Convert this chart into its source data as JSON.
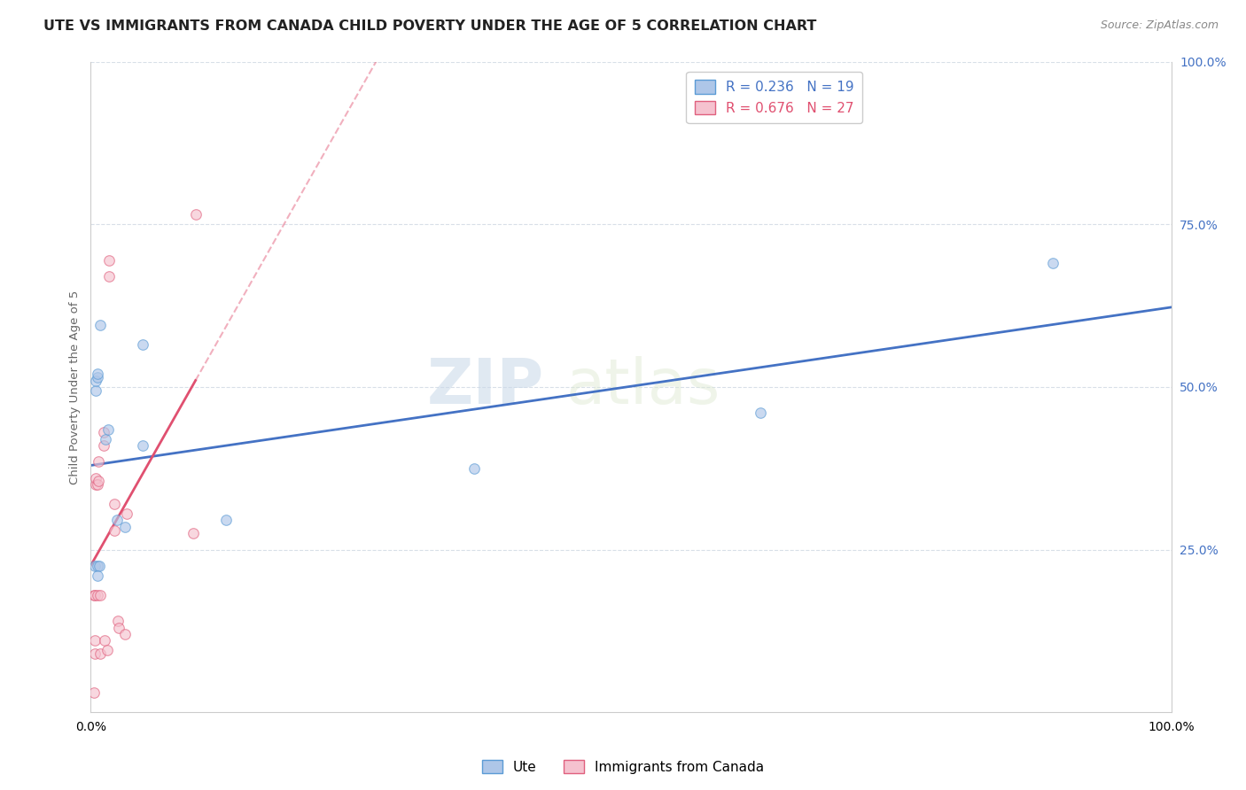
{
  "title": "UTE VS IMMIGRANTS FROM CANADA CHILD POVERTY UNDER THE AGE OF 5 CORRELATION CHART",
  "source": "Source: ZipAtlas.com",
  "ylabel": "Child Poverty Under the Age of 5",
  "watermark": "ZIPatlas",
  "xlim": [
    0,
    1
  ],
  "ylim": [
    0,
    1
  ],
  "xticks": [
    0,
    0.1,
    0.2,
    0.3,
    0.4,
    0.5,
    0.6,
    0.7,
    0.8,
    0.9,
    1.0
  ],
  "xticklabels": [
    "0.0%",
    "",
    "",
    "",
    "",
    "",
    "",
    "",
    "",
    "",
    "100.0%"
  ],
  "ytick_positions": [
    0.0,
    0.25,
    0.5,
    0.75,
    1.0
  ],
  "ytick_labels": [
    "",
    "25.0%",
    "50.0%",
    "75.0%",
    "100.0%"
  ],
  "ute_fill_color": "#aec6e8",
  "ute_edge_color": "#5b9bd5",
  "canada_fill_color": "#f5c2cf",
  "canada_edge_color": "#e0607e",
  "ute_line_color": "#4472c4",
  "canada_line_color": "#e05070",
  "legend_R_ute": "R = 0.236",
  "legend_N_ute": "N = 19",
  "legend_R_canada": "R = 0.676",
  "legend_N_canada": "N = 27",
  "ute_x": [
    0.004,
    0.005,
    0.005,
    0.006,
    0.006,
    0.006,
    0.008,
    0.009,
    0.014,
    0.016,
    0.024,
    0.032,
    0.048,
    0.048,
    0.125,
    0.355,
    0.62,
    0.89,
    0.006
  ],
  "ute_y": [
    0.225,
    0.495,
    0.51,
    0.515,
    0.52,
    0.225,
    0.225,
    0.595,
    0.42,
    0.435,
    0.295,
    0.285,
    0.41,
    0.565,
    0.295,
    0.375,
    0.46,
    0.69,
    0.21
  ],
  "canada_x": [
    0.003,
    0.004,
    0.004,
    0.004,
    0.005,
    0.005,
    0.006,
    0.006,
    0.007,
    0.007,
    0.009,
    0.009,
    0.012,
    0.012,
    0.013,
    0.015,
    0.017,
    0.017,
    0.022,
    0.022,
    0.025,
    0.026,
    0.032,
    0.033,
    0.095,
    0.097,
    0.003
  ],
  "canada_y": [
    0.18,
    0.18,
    0.11,
    0.09,
    0.35,
    0.36,
    0.35,
    0.18,
    0.355,
    0.385,
    0.18,
    0.09,
    0.43,
    0.41,
    0.11,
    0.095,
    0.67,
    0.695,
    0.32,
    0.28,
    0.14,
    0.13,
    0.12,
    0.305,
    0.275,
    0.765,
    0.03
  ],
  "background_color": "#ffffff",
  "grid_color": "#d8dfe8",
  "marker_size": 70,
  "marker_alpha": 0.65,
  "title_fontsize": 11.5,
  "axis_label_fontsize": 9.5,
  "tick_fontsize": 10,
  "legend_fontsize": 11
}
